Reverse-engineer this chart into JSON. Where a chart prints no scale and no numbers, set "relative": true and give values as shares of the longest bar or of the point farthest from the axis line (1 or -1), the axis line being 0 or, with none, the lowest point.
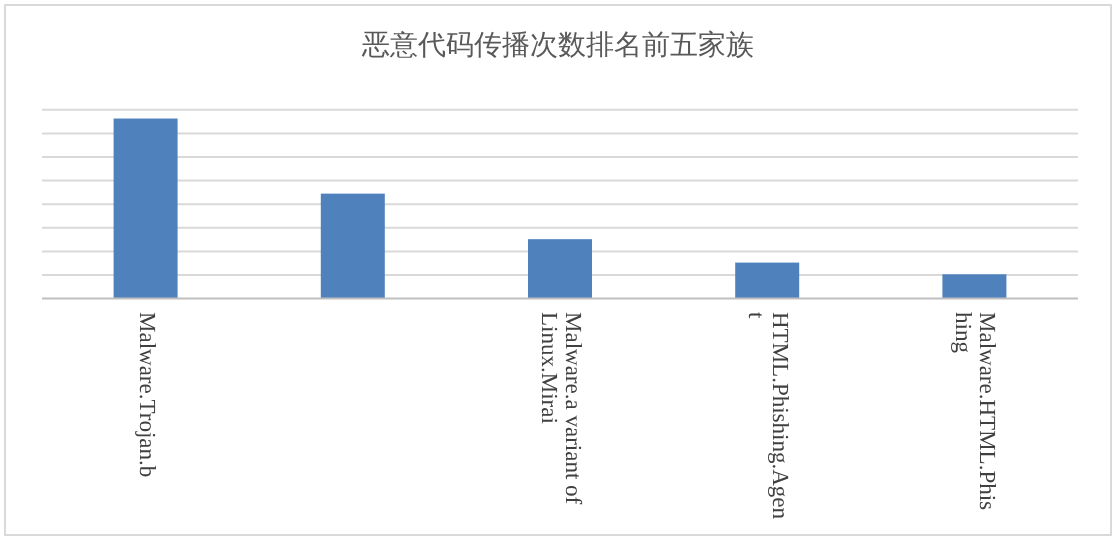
{
  "chart_data": {
    "type": "bar",
    "title": "恶意代码传播次数排名前五家族",
    "categories": [
      "Malware.Trojan.b",
      null,
      "Malware.a variant of Linux.Mirai",
      "HTML.Phishing.Agent",
      "Malware.HTML.Phishing"
    ],
    "values": [
      1,
      0.583,
      0.33,
      0.2,
      0.135
    ],
    "color": "#4f81bd",
    "relative": true,
    "grid": "y"
  }
}
